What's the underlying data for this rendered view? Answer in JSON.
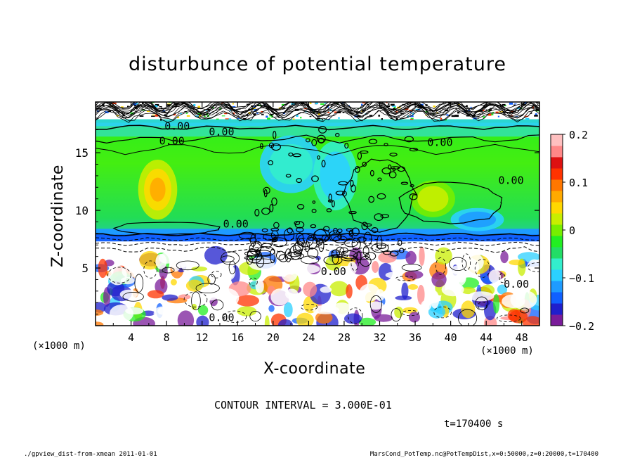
{
  "chart_data": {
    "type": "heatmap",
    "title": "disturbunce of potential temperature",
    "xlabel": "X-coordinate",
    "ylabel": "Z-coordinate",
    "x_unit": "(×1000 m)",
    "z_unit": "(×1000 m)",
    "xlim": [
      0,
      50
    ],
    "ylim": [
      0,
      19.4
    ],
    "x_ticks": [
      4,
      8,
      12,
      16,
      20,
      24,
      28,
      32,
      36,
      40,
      44,
      48
    ],
    "y_ticks": [
      5,
      10,
      15
    ],
    "colorbar": {
      "range": [
        -0.2,
        0.2
      ],
      "tick_labels": [
        "0.2",
        "0.1",
        "0",
        "−0.1",
        "−0.2"
      ],
      "tick_values": [
        0.2,
        0.1,
        0,
        -0.1,
        -0.2
      ],
      "colors": [
        "#7a1c9a",
        "#1f1fcc",
        "#1060ff",
        "#1e9bff",
        "#2bd0ff",
        "#33eecc",
        "#22dd66",
        "#22ee22",
        "#77ee00",
        "#c8ee00",
        "#ffd800",
        "#ffaa00",
        "#ff7700",
        "#ff3300",
        "#dd1111",
        "#ff8888",
        "#ffc0c0"
      ]
    },
    "contour_labels": [
      "0.00",
      "0.00",
      "0.00",
      "0.00",
      "0.00",
      "0.00",
      "0.00",
      "0.00",
      "0.00"
    ],
    "contour_interval": "CONTOUR INTERVAL = 3.000E-01",
    "time_label": "t=170400 s"
  },
  "footer": {
    "left": "./gpview_dist-from-xmean  2011-01-01",
    "right": "MarsCond_PotTemp.nc@PotTempDist,x=0:50000,z=0:20000,t=170400"
  }
}
